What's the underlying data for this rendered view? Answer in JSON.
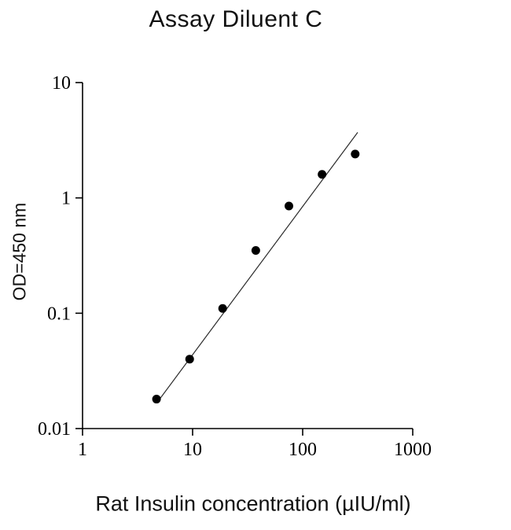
{
  "title": "Assay Diluent C",
  "chart_data": {
    "type": "scatter",
    "title": "Assay Diluent C",
    "xlabel": "Rat Insulin concentration (µIU/ml)",
    "ylabel": "OD=450 nm",
    "x_scale": "log",
    "y_scale": "log",
    "xlim": [
      1,
      1000
    ],
    "ylim": [
      0.01,
      10
    ],
    "x_ticks": [
      1,
      10,
      100,
      1000
    ],
    "x_tick_labels": [
      "1",
      "10",
      "100",
      "1000"
    ],
    "y_ticks": [
      10,
      1,
      0.1,
      0.01
    ],
    "y_tick_labels": [
      "10",
      "1",
      "0.1",
      "0.01"
    ],
    "grid": false,
    "legend": null,
    "points": [
      {
        "x": 4.7,
        "y": 0.018
      },
      {
        "x": 9.4,
        "y": 0.04
      },
      {
        "x": 18.75,
        "y": 0.11
      },
      {
        "x": 37.5,
        "y": 0.35
      },
      {
        "x": 75,
        "y": 0.85
      },
      {
        "x": 150,
        "y": 1.6
      },
      {
        "x": 300,
        "y": 2.4
      }
    ],
    "fit_line": {
      "x1": 4.8,
      "y1": 0.017,
      "x2": 316,
      "y2": 3.7
    }
  },
  "style": {
    "background": "#ffffff",
    "axis_color": "#000000",
    "marker_color": "#000000",
    "marker_radius": 5.5,
    "line_color": "#2a2a2a",
    "line_width": 1.2,
    "axis_width": 1.6,
    "tick_len": 9,
    "tick_font_size": 24
  }
}
